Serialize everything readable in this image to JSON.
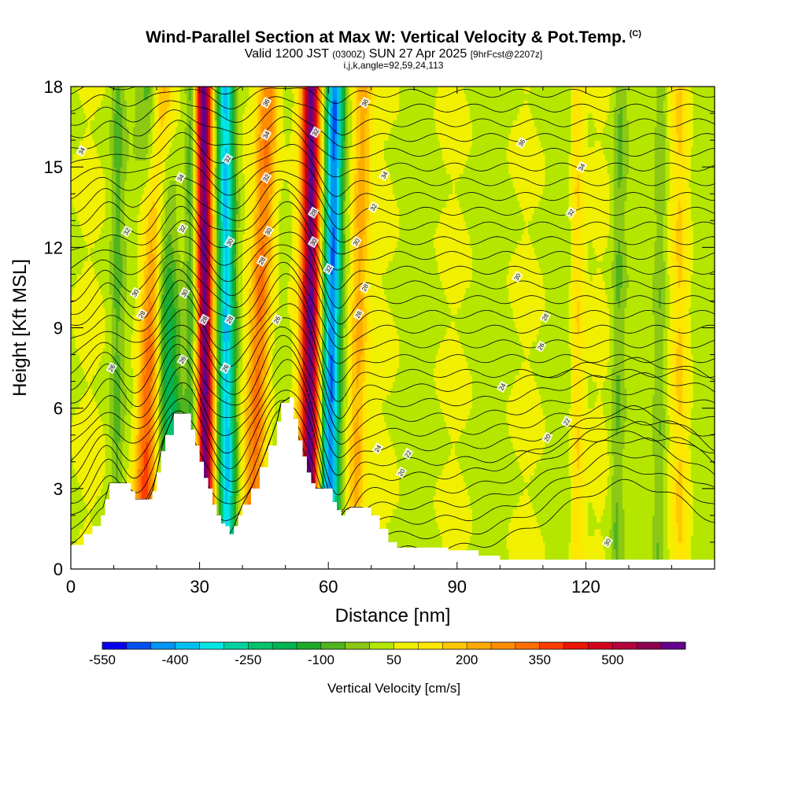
{
  "title": {
    "main": "Wind-Parallel Section at Max W: Vertical Velocity & Pot.Temp.",
    "mark": "(C)",
    "valid_prefix": "Valid 1200 JST",
    "valid_utc": "(0300Z)",
    "valid_date": "SUN 27 Apr 2025",
    "forecast": "[9hrFcst@2207z]",
    "params": "i,j,k,angle=92,59,24,113"
  },
  "chart_data": {
    "type": "heatmap",
    "xlabel": "Distance [nm]",
    "ylabel": "Height [Kft MSL]",
    "xlim": [
      0,
      150
    ],
    "ylim": [
      0,
      18
    ],
    "x_ticks": [
      0,
      30,
      60,
      90,
      120
    ],
    "y_ticks": [
      0,
      3,
      6,
      9,
      12,
      15,
      18
    ],
    "colorbar": {
      "label": "Vertical Velocity [cm/s]",
      "tick_labels": [
        "-550",
        "-400",
        "-250",
        "-100",
        "50",
        "200",
        "350",
        "500"
      ],
      "tick_values": [
        -550,
        -400,
        -250,
        -100,
        50,
        200,
        350,
        500
      ],
      "min": -550,
      "max": 650,
      "colors": [
        "#0a00f0",
        "#0050f0",
        "#0095f0",
        "#00c0f0",
        "#00e6e6",
        "#00d2a0",
        "#00c36e",
        "#00b450",
        "#1eaa28",
        "#50b41e",
        "#8cc814",
        "#b4e600",
        "#f0f000",
        "#ffe600",
        "#ffc800",
        "#ffaa00",
        "#ff8c00",
        "#ff6e00",
        "#ff3c00",
        "#eb1400",
        "#d2001e",
        "#b4003c",
        "#8c0050",
        "#64008c"
      ]
    },
    "velocity_bands": [
      {
        "x_bottom": 16.5,
        "x_top": 21,
        "half_width": 2.6,
        "peak": 320
      },
      {
        "x_bottom": 24.5,
        "x_top": 19.5,
        "half_width": 3.2,
        "peak": -260
      },
      {
        "x_bottom": 31.5,
        "x_top": 31.0,
        "half_width": 2.0,
        "peak": 600
      },
      {
        "x_bottom": 36.5,
        "x_top": 36.0,
        "half_width": 2.2,
        "peak": -420
      },
      {
        "x_bottom": 42.0,
        "x_top": 46.0,
        "half_width": 2.5,
        "peak": 280
      },
      {
        "x_bottom": 55.5,
        "x_top": 56.0,
        "half_width": 2.2,
        "peak": 560
      },
      {
        "x_bottom": 60.0,
        "x_top": 61.5,
        "half_width": 2.0,
        "peak": -480
      },
      {
        "x_bottom": 66.0,
        "x_top": 68.0,
        "half_width": 2.2,
        "peak": 180
      },
      {
        "x_bottom": 28.0,
        "x_top": 28.0,
        "half_width": 1.2,
        "peak": -130
      },
      {
        "x_bottom": 10.5,
        "x_top": 11.0,
        "half_width": 1.5,
        "peak": -90
      },
      {
        "x_bottom": 127.0,
        "x_top": 128.0,
        "half_width": 1.5,
        "peak": -90
      },
      {
        "x_bottom": 137.0,
        "x_top": 137.5,
        "half_width": 1.5,
        "peak": -90
      },
      {
        "x_bottom": 118.0,
        "x_top": 118.0,
        "half_width": 1.5,
        "peak": 110
      },
      {
        "x_bottom": 142.0,
        "x_top": 142.0,
        "half_width": 1.8,
        "peak": 100
      }
    ],
    "terrain": [
      [
        0,
        0.9
      ],
      [
        3,
        1.3
      ],
      [
        5,
        1.6
      ],
      [
        7,
        2.0
      ],
      [
        8,
        2.6
      ],
      [
        9,
        3.2
      ],
      [
        13,
        3.2
      ],
      [
        14,
        2.9
      ],
      [
        15,
        2.6
      ],
      [
        18,
        2.6
      ],
      [
        19,
        2.9
      ],
      [
        20,
        3.6
      ],
      [
        21,
        4.4
      ],
      [
        22,
        5.0
      ],
      [
        24,
        5.8
      ],
      [
        27,
        5.8
      ],
      [
        28,
        5.2
      ],
      [
        29,
        4.6
      ],
      [
        30,
        4.0
      ],
      [
        31,
        3.4
      ],
      [
        32,
        3.0
      ],
      [
        33,
        2.4
      ],
      [
        34,
        2.0
      ],
      [
        35,
        1.7
      ],
      [
        36,
        1.6
      ],
      [
        37,
        1.3
      ],
      [
        38,
        1.6
      ],
      [
        39,
        2.0
      ],
      [
        40,
        2.4
      ],
      [
        42,
        3.0
      ],
      [
        44,
        3.8
      ],
      [
        46,
        4.6
      ],
      [
        48,
        5.5
      ],
      [
        49,
        6.2
      ],
      [
        51,
        6.4
      ],
      [
        52,
        5.6
      ],
      [
        53,
        4.8
      ],
      [
        54,
        4.2
      ],
      [
        55,
        3.6
      ],
      [
        56,
        3.2
      ],
      [
        57,
        3.0
      ],
      [
        59,
        3.0
      ],
      [
        61,
        2.5
      ],
      [
        62,
        2.2
      ],
      [
        63,
        2.0
      ],
      [
        64,
        2.2
      ],
      [
        65,
        2.3
      ],
      [
        68,
        2.3
      ],
      [
        70,
        2.0
      ],
      [
        72,
        1.5
      ],
      [
        74,
        1.0
      ],
      [
        76,
        0.8
      ],
      [
        88,
        0.7
      ],
      [
        95,
        0.5
      ],
      [
        100,
        0.35
      ],
      [
        150,
        0.35
      ]
    ],
    "theta_contours": {
      "kft_per_level": 0.55,
      "peaks": [
        {
          "x": 25.5,
          "amp": 3.6,
          "width": 7
        },
        {
          "x": 50,
          "amp": 4.0,
          "width": 8
        },
        {
          "x": 8.5,
          "amp": 1.8,
          "width": 5
        },
        {
          "x": 62,
          "amp": -1.8,
          "width": 4
        }
      ]
    },
    "theta_labels": [
      {
        "text": "34",
        "x": 2.5,
        "y": 15.6
      },
      {
        "text": "32",
        "x": 13,
        "y": 12.6
      },
      {
        "text": "30",
        "x": 15,
        "y": 10.3
      },
      {
        "text": "28",
        "x": 16.5,
        "y": 9.5
      },
      {
        "text": "26",
        "x": 9.5,
        "y": 7.5
      },
      {
        "text": "34",
        "x": 25.5,
        "y": 14.6
      },
      {
        "text": "32",
        "x": 26,
        "y": 12.7
      },
      {
        "text": "30",
        "x": 26.5,
        "y": 10.3
      },
      {
        "text": "26",
        "x": 26,
        "y": 7.8
      },
      {
        "text": "32",
        "x": 36.5,
        "y": 15.3
      },
      {
        "text": "30",
        "x": 37,
        "y": 12.2
      },
      {
        "text": "28",
        "x": 37,
        "y": 9.3
      },
      {
        "text": "26",
        "x": 36,
        "y": 7.5
      },
      {
        "text": "28",
        "x": 31,
        "y": 9.3
      },
      {
        "text": "36",
        "x": 45.5,
        "y": 17.4
      },
      {
        "text": "34",
        "x": 45.5,
        "y": 16.2
      },
      {
        "text": "32",
        "x": 45.5,
        "y": 14.6
      },
      {
        "text": "30",
        "x": 46,
        "y": 12.6
      },
      {
        "text": "28",
        "x": 44.5,
        "y": 11.5
      },
      {
        "text": "26",
        "x": 48,
        "y": 9.3
      },
      {
        "text": "32",
        "x": 57,
        "y": 16.3
      },
      {
        "text": "30",
        "x": 56.5,
        "y": 12.2
      },
      {
        "text": "28",
        "x": 56.5,
        "y": 13.3
      },
      {
        "text": "32",
        "x": 60,
        "y": 11.2
      },
      {
        "text": "36",
        "x": 68.5,
        "y": 17.4
      },
      {
        "text": "34",
        "x": 73,
        "y": 14.7
      },
      {
        "text": "32",
        "x": 70.5,
        "y": 13.5
      },
      {
        "text": "30",
        "x": 66.5,
        "y": 12.2
      },
      {
        "text": "28",
        "x": 68.5,
        "y": 10.5
      },
      {
        "text": "26",
        "x": 67,
        "y": 9.5
      },
      {
        "text": "24",
        "x": 71.5,
        "y": 4.5
      },
      {
        "text": "22",
        "x": 78.5,
        "y": 4.3
      },
      {
        "text": "20",
        "x": 77,
        "y": 3.6
      },
      {
        "text": "36",
        "x": 105,
        "y": 15.9
      },
      {
        "text": "34",
        "x": 119,
        "y": 15.0
      },
      {
        "text": "32",
        "x": 116.5,
        "y": 13.3
      },
      {
        "text": "30",
        "x": 104,
        "y": 10.9
      },
      {
        "text": "28",
        "x": 110.5,
        "y": 9.4
      },
      {
        "text": "26",
        "x": 109.5,
        "y": 8.3
      },
      {
        "text": "24",
        "x": 100.5,
        "y": 6.8
      },
      {
        "text": "22",
        "x": 115.5,
        "y": 5.5
      },
      {
        "text": "20",
        "x": 111,
        "y": 4.9
      },
      {
        "text": "30",
        "x": 125,
        "y": 1.0
      }
    ],
    "grid": false,
    "legend": "colorbar-bottom"
  }
}
